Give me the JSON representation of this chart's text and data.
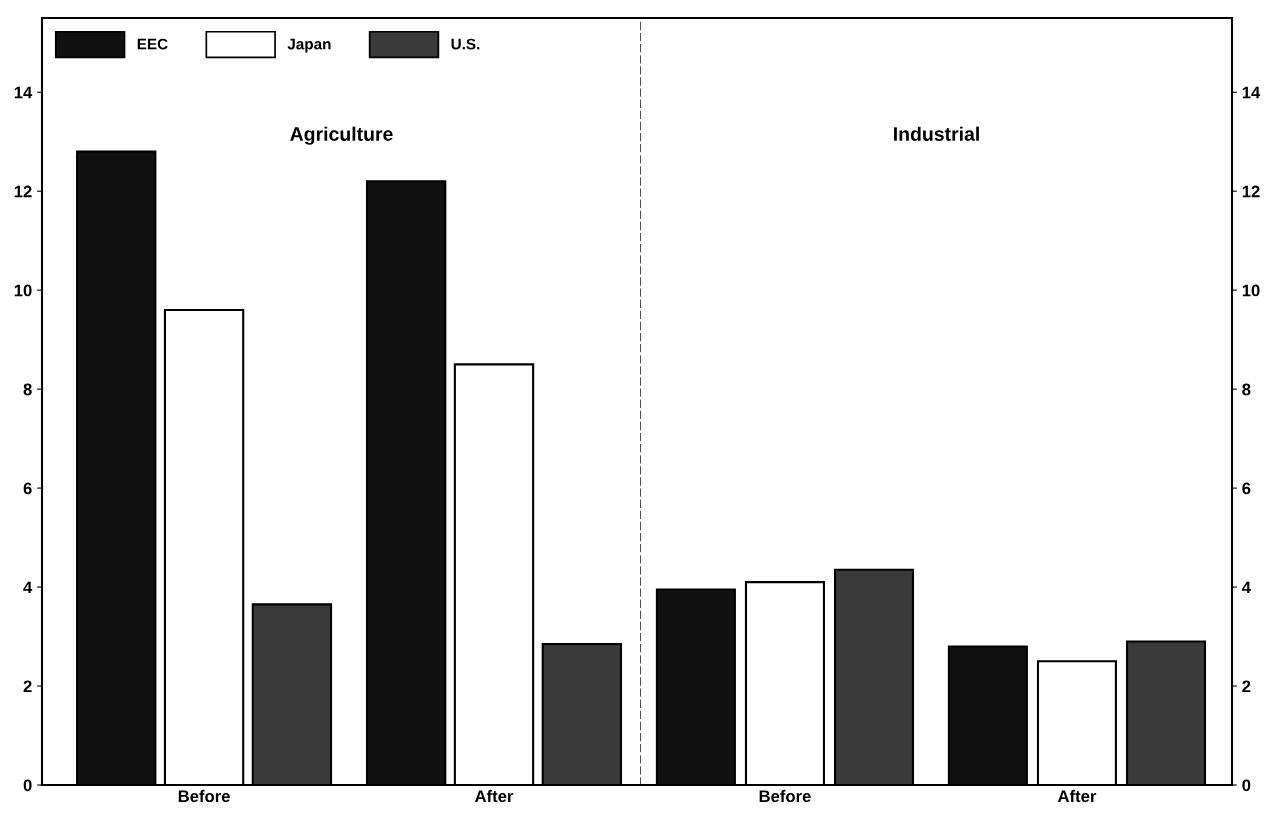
{
  "chart_data": [
    {
      "type": "bar",
      "title": "Agriculture",
      "categories": [
        "Before",
        "After"
      ],
      "ylim": [
        0,
        15.5
      ],
      "yticks": [
        0,
        2,
        4,
        6,
        8,
        10,
        12,
        14
      ],
      "legend": "top left",
      "grid": false,
      "series": [
        {
          "name": "EEC",
          "color": "#111111",
          "values": [
            12.8,
            12.2
          ]
        },
        {
          "name": "Japan",
          "color": "#ffffff",
          "values": [
            9.6,
            8.5
          ]
        },
        {
          "name": "U.S.",
          "color": "#3a3a3a",
          "values": [
            3.65,
            2.85
          ]
        }
      ]
    },
    {
      "type": "bar",
      "title": "Industrial",
      "categories": [
        "Before",
        "After"
      ],
      "ylim": [
        0,
        15.5
      ],
      "yticks": [
        0,
        2,
        4,
        6,
        8,
        10,
        12,
        14
      ],
      "grid": false,
      "series": [
        {
          "color": "#111111",
          "values": [
            3.95,
            2.8
          ]
        },
        {
          "color": "#ffffff",
          "values": [
            4.1,
            2.5
          ]
        },
        {
          "color": "#3a3a3a",
          "values": [
            4.35,
            2.9
          ]
        }
      ]
    }
  ]
}
